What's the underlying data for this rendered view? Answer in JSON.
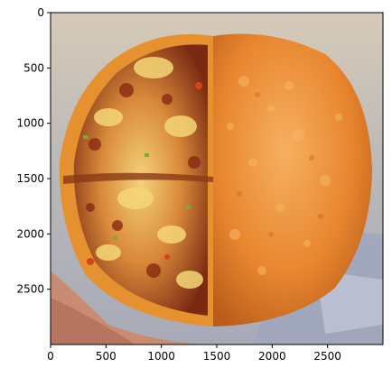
{
  "image": {
    "description_hidden": false,
    "extent": {
      "x": [
        0,
        3000
      ],
      "y": [
        3000,
        0
      ]
    }
  },
  "axes": {
    "x_ticks": [
      {
        "value": 0,
        "label": "0"
      },
      {
        "value": 500,
        "label": "500"
      },
      {
        "value": 1000,
        "label": "1000"
      },
      {
        "value": 1500,
        "label": "1500"
      },
      {
        "value": 2000,
        "label": "2000"
      },
      {
        "value": 2500,
        "label": "2500"
      }
    ],
    "y_ticks": [
      {
        "value": 0,
        "label": "0"
      },
      {
        "value": 500,
        "label": "500"
      },
      {
        "value": 1000,
        "label": "1000"
      },
      {
        "value": 1500,
        "label": "1500"
      },
      {
        "value": 2000,
        "label": "2000"
      },
      {
        "value": 2500,
        "label": "2500"
      }
    ]
  },
  "colors": {
    "crust": "#e8862f",
    "crust_dark": "#c8651c",
    "crust_light": "#f3a24e",
    "cheese": "#f2c45a",
    "sauce": "#8a2a12",
    "background_top": "#d9cfc2",
    "foil": "#a9b0c0",
    "hand": "#c98b72"
  }
}
